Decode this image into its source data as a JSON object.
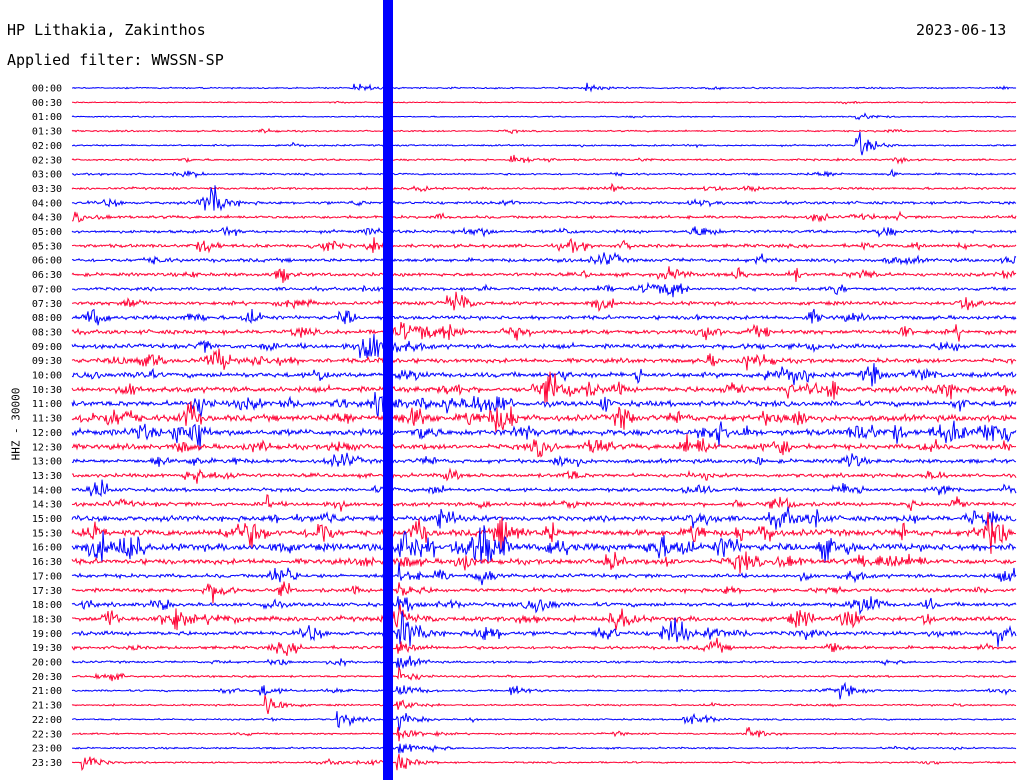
{
  "header": {
    "station": "HP Lithakia, Zakinthos",
    "date": "2023-06-13",
    "filter": "Applied filter: WWSSN-SP"
  },
  "chart_data": {
    "type": "line",
    "title": "HP Lithakia, Zakinthos",
    "subtitle": "Applied filter: WWSSN-SP",
    "ylabel": "HHZ - 30000",
    "xlabel": "",
    "y_tick_labels": [
      "00:00",
      "00:30",
      "01:00",
      "01:30",
      "02:00",
      "02:30",
      "03:00",
      "03:30",
      "04:00",
      "04:30",
      "05:00",
      "05:30",
      "06:00",
      "06:30",
      "07:00",
      "07:30",
      "08:00",
      "08:30",
      "09:00",
      "09:30",
      "10:00",
      "10:30",
      "11:00",
      "11:30",
      "12:00",
      "12:30",
      "13:00",
      "13:30",
      "14:00",
      "14:30",
      "15:00",
      "15:30",
      "16:00",
      "16:30",
      "17:00",
      "17:30",
      "18:00",
      "18:30",
      "19:00",
      "19:30",
      "20:00",
      "20:30",
      "21:00",
      "21:30",
      "22:00",
      "22:30",
      "23:00",
      "23:30"
    ],
    "trace_colors": [
      "#0000ff",
      "#ff0033"
    ],
    "trace_activity": [
      0.8,
      0.5,
      0.6,
      0.9,
      1.0,
      1.2,
      1.2,
      1.5,
      2.0,
      2.0,
      2.2,
      2.5,
      2.6,
      2.6,
      2.4,
      2.6,
      2.8,
      3.2,
      3.4,
      3.2,
      3.8,
      4.2,
      4.2,
      4.8,
      4.8,
      3.8,
      3.0,
      2.8,
      2.6,
      3.0,
      4.0,
      5.0,
      5.5,
      4.0,
      2.8,
      2.8,
      3.0,
      3.6,
      3.2,
      2.2,
      1.4,
      1.2,
      1.2,
      1.0,
      1.0,
      1.0,
      1.0,
      1.0
    ],
    "events": [
      {
        "row": 0,
        "minute": 9,
        "amp": 10
      },
      {
        "row": 0,
        "minute": 16.4,
        "amp": 8
      },
      {
        "row": 2,
        "minute": 25,
        "amp": 8
      },
      {
        "row": 4,
        "minute": 25,
        "amp": 24
      },
      {
        "row": 5,
        "minute": 14,
        "amp": 9
      },
      {
        "row": 7,
        "minute": 20,
        "amp": 9
      },
      {
        "row": 8,
        "minute": 4.5,
        "amp": 18
      },
      {
        "row": 15,
        "minute": 12,
        "amp": 14
      },
      {
        "row": 38,
        "minute": 10.5,
        "amp": 24
      },
      {
        "row": 38,
        "minute": 29.5,
        "amp": 14
      },
      {
        "row": 42,
        "minute": 6,
        "amp": 12
      },
      {
        "row": 42,
        "minute": 14,
        "amp": 10
      },
      {
        "row": 42,
        "minute": 24.5,
        "amp": 12
      },
      {
        "row": 43,
        "minute": 6.2,
        "amp": 22
      },
      {
        "row": 44,
        "minute": 8.5,
        "amp": 16
      },
      {
        "row": 44,
        "minute": 19.5,
        "amp": 12
      },
      {
        "row": 45,
        "minute": 21.5,
        "amp": 12
      },
      {
        "row": 47,
        "minute": 0.4,
        "amp": 16
      }
    ],
    "major_arrival": {
      "minute_offset": 10.4,
      "color": "#0000ff"
    },
    "grid": false
  }
}
